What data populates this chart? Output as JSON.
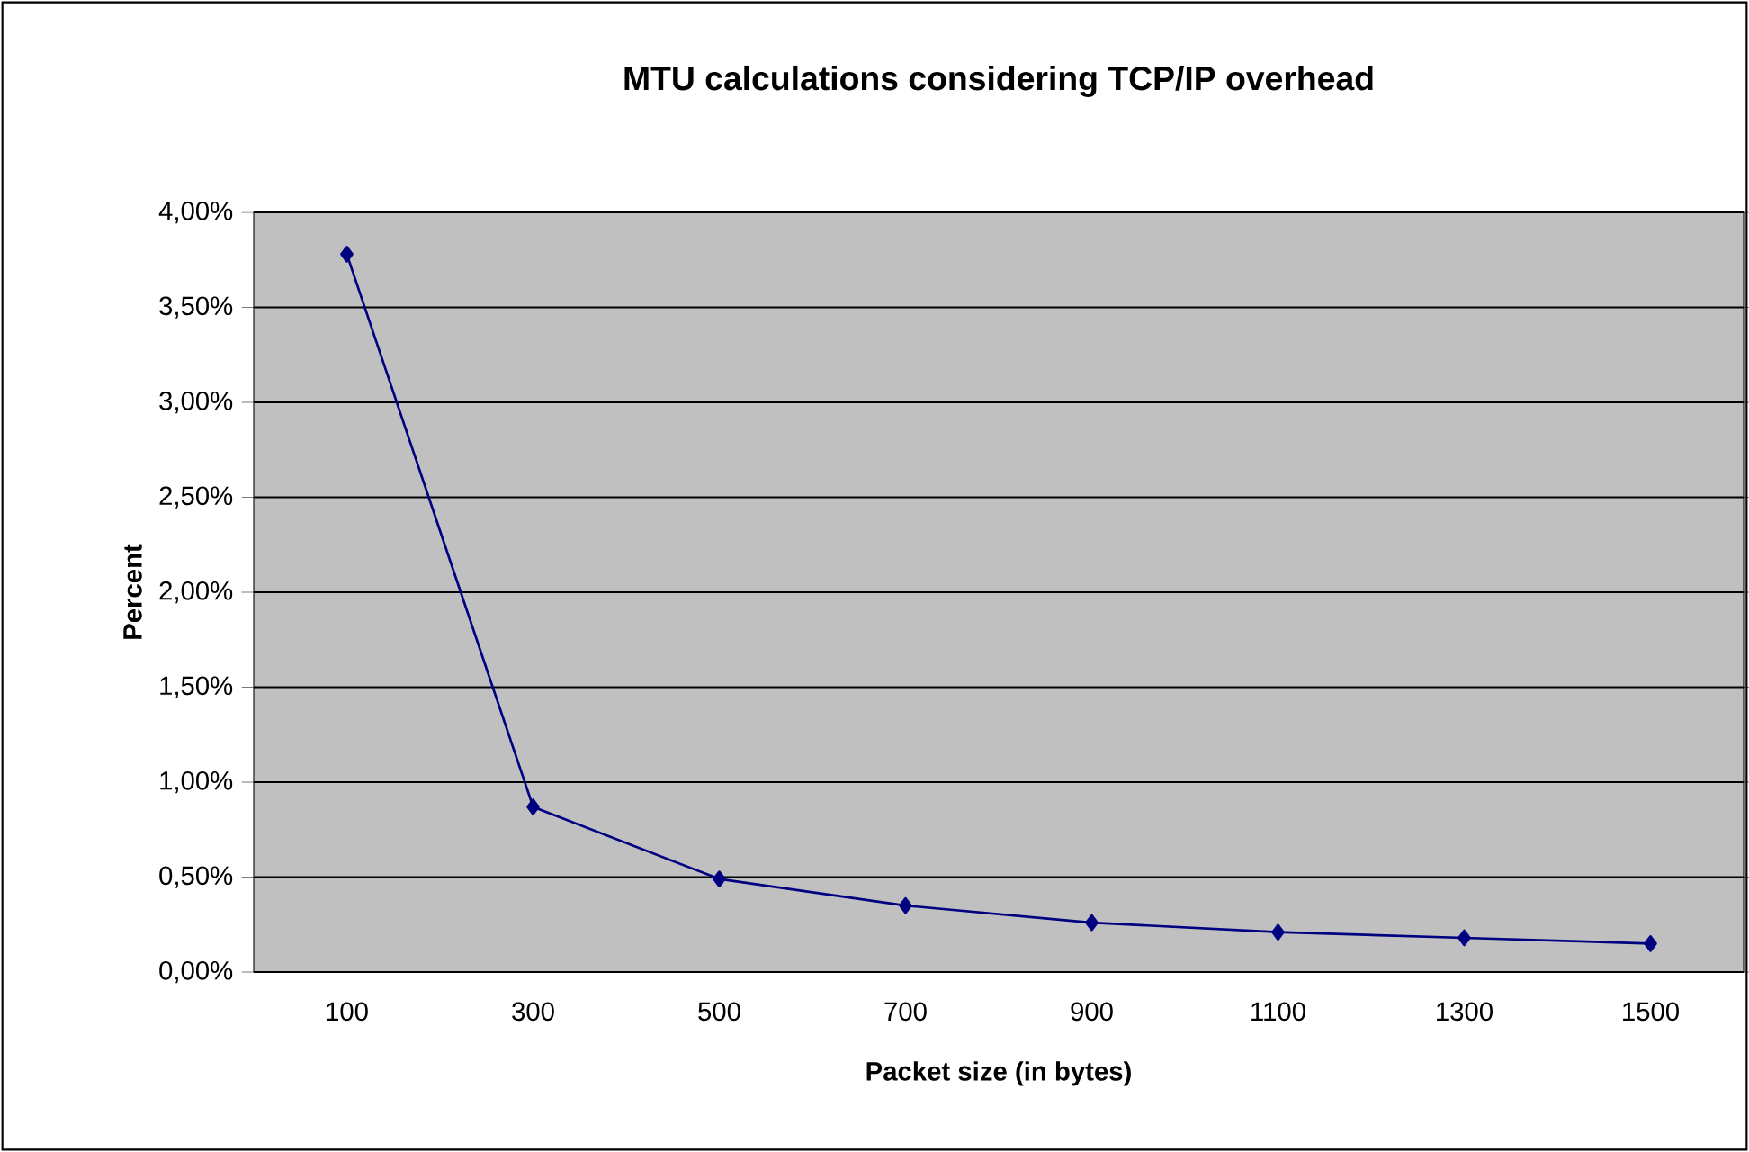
{
  "chart_data": {
    "type": "line",
    "title": "MTU calculations considering TCP/IP overhead",
    "xlabel": "Packet size (in bytes)",
    "ylabel": "Percent",
    "categories": [
      "100",
      "300",
      "500",
      "700",
      "900",
      "1100",
      "1300",
      "1500"
    ],
    "series": [
      {
        "color": "#000080",
        "values": [
          3.78,
          0.87,
          0.49,
          0.35,
          0.26,
          0.21,
          0.18,
          0.15
        ]
      }
    ],
    "ylim": [
      0,
      4
    ],
    "yticks": [
      {
        "value": 0,
        "label": "0,00%"
      },
      {
        "value": 0.5,
        "label": "0,50%"
      },
      {
        "value": 1,
        "label": "1,00%"
      },
      {
        "value": 1.5,
        "label": "1,50%"
      },
      {
        "value": 2,
        "label": "2,00%"
      },
      {
        "value": 2.5,
        "label": "2,50%"
      },
      {
        "value": 3,
        "label": "3,00%"
      },
      {
        "value": 3.5,
        "label": "3,50%"
      },
      {
        "value": 4,
        "label": "4,00%"
      }
    ],
    "grid": "y",
    "marker": "diamond",
    "line_style": "solid"
  }
}
